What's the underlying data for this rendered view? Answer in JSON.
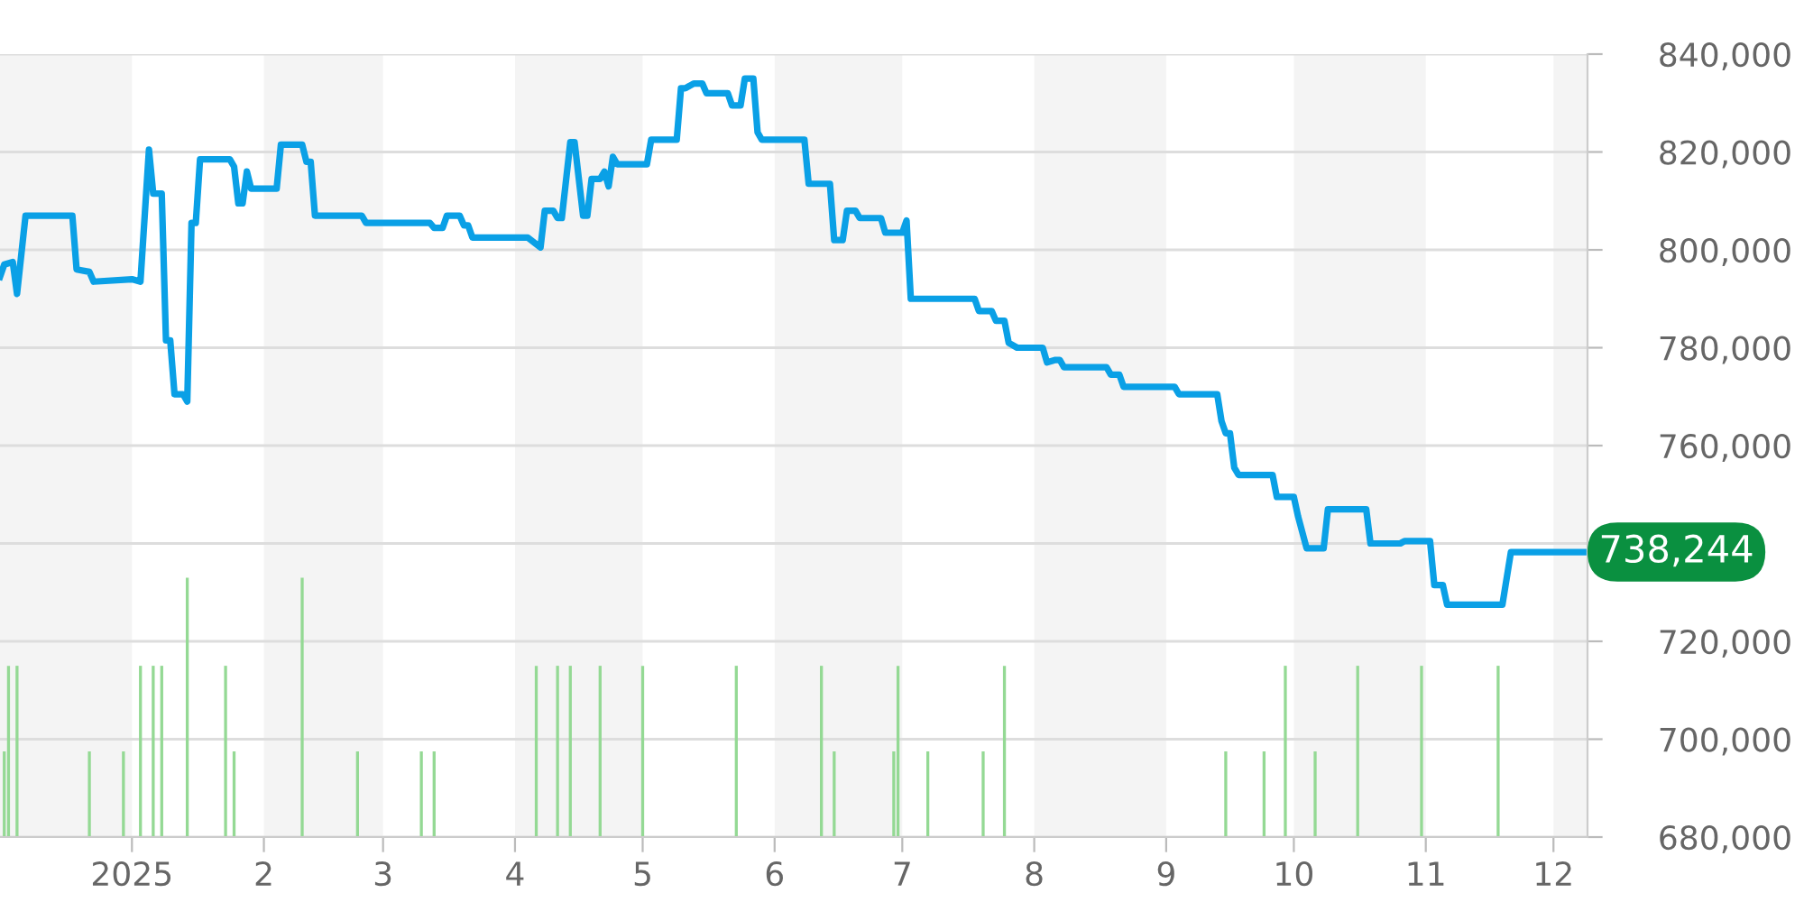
{
  "chart_data": {
    "type": "line",
    "xlim": [
      "2024-12-01",
      "2025-12-09"
    ],
    "ylim": [
      680000,
      840000
    ],
    "xticks": [
      {
        "value": "2025-01-01",
        "label": "2025"
      },
      {
        "value": "2025-02-01",
        "label": "2"
      },
      {
        "value": "2025-03-01",
        "label": "3"
      },
      {
        "value": "2025-04-01",
        "label": "4"
      },
      {
        "value": "2025-05-01",
        "label": "5"
      },
      {
        "value": "2025-06-01",
        "label": "6"
      },
      {
        "value": "2025-07-01",
        "label": "7"
      },
      {
        "value": "2025-08-01",
        "label": "8"
      },
      {
        "value": "2025-09-01",
        "label": "9"
      },
      {
        "value": "2025-10-01",
        "label": "10"
      },
      {
        "value": "2025-11-01",
        "label": "11"
      },
      {
        "value": "2025-12-01",
        "label": "12"
      }
    ],
    "yticks": [
      {
        "value": 680000,
        "label": "680,000"
      },
      {
        "value": 700000,
        "label": "700,000"
      },
      {
        "value": 720000,
        "label": "720,000"
      },
      {
        "value": 740000,
        "label": null
      },
      {
        "value": 760000,
        "label": "760,000"
      },
      {
        "value": 780000,
        "label": "780,000"
      },
      {
        "value": 800000,
        "label": "800,000"
      },
      {
        "value": 820000,
        "label": "820,000"
      },
      {
        "value": 840000,
        "label": "840,000"
      }
    ],
    "grid": "y",
    "bands": [
      {
        "axis": "x",
        "from": "2024-12-01",
        "to": "2025-01-01",
        "color": "#f4f4f4"
      },
      {
        "axis": "x",
        "from": "2025-02-01",
        "to": "2025-03-01",
        "color": "#f4f4f4"
      },
      {
        "axis": "x",
        "from": "2025-04-01",
        "to": "2025-05-01",
        "color": "#f4f4f4"
      },
      {
        "axis": "x",
        "from": "2025-06-01",
        "to": "2025-07-01",
        "color": "#f4f4f4"
      },
      {
        "axis": "x",
        "from": "2025-08-01",
        "to": "2025-09-01",
        "color": "#f4f4f4"
      },
      {
        "axis": "x",
        "from": "2025-10-01",
        "to": "2025-11-01",
        "color": "#f4f4f4"
      },
      {
        "axis": "x",
        "from": "2025-12-01",
        "to": "2025-12-09",
        "color": "#f4f4f4"
      }
    ],
    "annotations": [
      {
        "text": "738,244",
        "x": "2025-12-08",
        "y": 738244
      }
    ],
    "series": [
      {
        "type": "bar",
        "color": "#94d994",
        "x": [
          "2024-12-02",
          "2024-12-03",
          "2024-12-05",
          "2024-12-22",
          "2024-12-30",
          "2025-01-03",
          "2025-01-06",
          "2025-01-08",
          "2025-01-14",
          "2025-01-23",
          "2025-01-25",
          "2025-02-10",
          "2025-02-23",
          "2025-03-10",
          "2025-03-13",
          "2025-04-06",
          "2025-04-11",
          "2025-04-14",
          "2025-04-21",
          "2025-05-01",
          "2025-05-23",
          "2025-06-12",
          "2025-06-15",
          "2025-06-29",
          "2025-06-30",
          "2025-07-07",
          "2025-07-20",
          "2025-07-25",
          "2025-09-15",
          "2025-09-24",
          "2025-09-29",
          "2025-10-06",
          "2025-10-16",
          "2025-10-31",
          "2025-11-18"
        ],
        "base": [
          680000,
          680000,
          680000,
          680000,
          680000,
          680000,
          680000,
          680000,
          680000,
          680000,
          680000,
          680000,
          680000,
          680000,
          680000,
          680000,
          680000,
          680000,
          680000,
          680000,
          680000,
          680000,
          680000,
          680000,
          680000,
          680000,
          680000,
          680000,
          680000,
          680000,
          680000,
          680000,
          680000,
          680000,
          680000
        ],
        "values": [
          17500,
          35000,
          35000,
          17500,
          17500,
          35000,
          35000,
          35000,
          53000,
          35000,
          17500,
          53000,
          17500,
          17500,
          17500,
          35000,
          35000,
          35000,
          35000,
          35000,
          35000,
          35000,
          17500,
          17500,
          35000,
          17500,
          17500,
          35000,
          17500,
          17500,
          35000,
          17500,
          35000,
          35000,
          35000
        ]
      },
      {
        "color": "#0aa0e6",
        "line_style": "solid",
        "marker": "none",
        "x": [
          "2024-12-01",
          "2024-12-02",
          "2024-12-04",
          "2024-12-05",
          "2024-12-07",
          "2024-12-18",
          "2024-12-19",
          "2024-12-22",
          "2024-12-23",
          "2025-01-01",
          "2025-01-03",
          "2025-01-05",
          "2025-01-06",
          "2025-01-08",
          "2025-01-09",
          "2025-01-10",
          "2025-01-11",
          "2025-01-13",
          "2025-01-14",
          "2025-01-15",
          "2025-01-16",
          "2025-01-17",
          "2025-01-24",
          "2025-01-25",
          "2025-01-26",
          "2025-01-27",
          "2025-01-28",
          "2025-01-29",
          "2025-02-04",
          "2025-02-05",
          "2025-02-10",
          "2025-02-11",
          "2025-02-12",
          "2025-02-13",
          "2025-02-24",
          "2025-02-25",
          "2025-03-12",
          "2025-03-13",
          "2025-03-15",
          "2025-03-16",
          "2025-03-19",
          "2025-03-20",
          "2025-03-21",
          "2025-03-22",
          "2025-04-04",
          "2025-04-07",
          "2025-04-08",
          "2025-04-10",
          "2025-04-11",
          "2025-04-12",
          "2025-04-14",
          "2025-04-15",
          "2025-04-17",
          "2025-04-18",
          "2025-04-19",
          "2025-04-21",
          "2025-04-22",
          "2025-04-23",
          "2025-04-24",
          "2025-04-25",
          "2025-05-02",
          "2025-05-03",
          "2025-05-09",
          "2025-05-10",
          "2025-05-11",
          "2025-05-13",
          "2025-05-15",
          "2025-05-16",
          "2025-05-21",
          "2025-05-22",
          "2025-05-24",
          "2025-05-25",
          "2025-05-27",
          "2025-05-28",
          "2025-05-29",
          "2025-06-08",
          "2025-06-09",
          "2025-06-14",
          "2025-06-15",
          "2025-06-17",
          "2025-06-18",
          "2025-06-20",
          "2025-06-21",
          "2025-06-26",
          "2025-06-27",
          "2025-07-01",
          "2025-07-02",
          "2025-07-03",
          "2025-07-18",
          "2025-07-19",
          "2025-07-22",
          "2025-07-23",
          "2025-07-25",
          "2025-07-26",
          "2025-07-28",
          "2025-08-03",
          "2025-08-04",
          "2025-08-06",
          "2025-08-07",
          "2025-08-08",
          "2025-08-18",
          "2025-08-19",
          "2025-08-21",
          "2025-08-22",
          "2025-09-03",
          "2025-09-04",
          "2025-09-13",
          "2025-09-14",
          "2025-09-15",
          "2025-09-16",
          "2025-09-17",
          "2025-09-18",
          "2025-09-26",
          "2025-09-27",
          "2025-10-01",
          "2025-10-02",
          "2025-10-04",
          "2025-10-08",
          "2025-10-09",
          "2025-10-18",
          "2025-10-19",
          "2025-10-26",
          "2025-10-27",
          "2025-11-02",
          "2025-11-03",
          "2025-11-05",
          "2025-11-06",
          "2025-11-19",
          "2025-11-21",
          "2025-12-08"
        ],
        "values": [
          794500,
          797000,
          797500,
          791000,
          807000,
          807000,
          796000,
          795500,
          793500,
          794000,
          793500,
          820500,
          811500,
          811500,
          781500,
          781500,
          770500,
          770500,
          769000,
          805500,
          805500,
          818500,
          818500,
          817000,
          809500,
          809500,
          816000,
          812500,
          812500,
          821500,
          821500,
          818000,
          818000,
          807000,
          807000,
          805500,
          805500,
          804500,
          804500,
          807000,
          807000,
          805000,
          805000,
          802500,
          802500,
          800500,
          808000,
          808000,
          806500,
          806500,
          822000,
          822000,
          807000,
          807000,
          814500,
          814500,
          816000,
          813000,
          819000,
          817500,
          817500,
          822500,
          822500,
          833000,
          833000,
          834000,
          834000,
          832000,
          832000,
          829500,
          829500,
          835000,
          835000,
          824000,
          822500,
          822500,
          813500,
          813500,
          802000,
          802000,
          808000,
          808000,
          806500,
          806500,
          803500,
          803500,
          806000,
          790000,
          790000,
          787500,
          787500,
          785500,
          785500,
          781000,
          780000,
          780000,
          777000,
          777500,
          777500,
          776000,
          776000,
          774500,
          774500,
          772000,
          772000,
          770500,
          770500,
          765000,
          762500,
          762500,
          755500,
          754000,
          754000,
          749500,
          749500,
          745500,
          739000,
          739000,
          747000,
          747000,
          740000,
          740000,
          740500,
          740500,
          731500,
          731500,
          727500,
          727500,
          738244,
          738244
        ]
      }
    ]
  }
}
